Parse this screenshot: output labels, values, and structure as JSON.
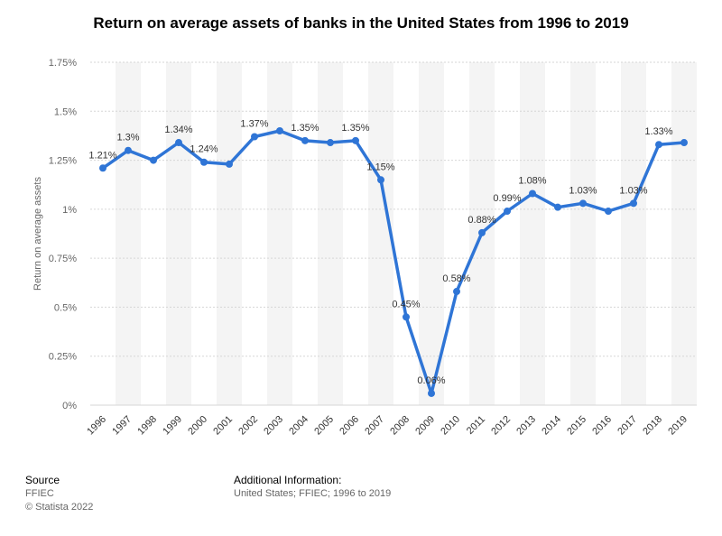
{
  "chart_data": {
    "type": "line",
    "title": "Return on average assets of banks in the United States from 1996 to 2019",
    "xlabel": "",
    "ylabel": "Return on average assets",
    "ylim": [
      0,
      1.75
    ],
    "yticks": [
      "0%",
      "0.25%",
      "0.5%",
      "0.75%",
      "1%",
      "1.25%",
      "1.5%",
      "1.75%"
    ],
    "categories": [
      "1996",
      "1997",
      "1998",
      "1999",
      "2000",
      "2001",
      "2002",
      "2003",
      "2004",
      "2005",
      "2006",
      "2007",
      "2008",
      "2009",
      "2010",
      "2011",
      "2012",
      "2013",
      "2014",
      "2015",
      "2016",
      "2017",
      "2018",
      "2019"
    ],
    "series": [
      {
        "values": [
          1.21,
          1.3,
          1.25,
          1.34,
          1.24,
          1.23,
          1.37,
          1.4,
          1.35,
          1.34,
          1.35,
          1.15,
          0.45,
          0.06,
          0.58,
          0.88,
          0.99,
          1.08,
          1.01,
          1.03,
          0.99,
          1.03,
          1.33,
          1.34
        ],
        "data_labels": [
          "1.21%",
          "1.3%",
          "",
          "1.34%",
          "1.24%",
          "",
          "1.37%",
          "",
          "1.35%",
          "",
          "1.35%",
          "1.15%",
          "0.45%",
          "0.06%",
          "0.58%",
          "0.88%",
          "0.99%",
          "1.08%",
          "",
          "1.03%",
          "",
          "1.03%",
          "1.33%",
          ""
        ]
      }
    ],
    "grid": true,
    "colors": {
      "line": "#2f75d6",
      "band": "#f4f4f4",
      "grid": "#d6d6d6"
    }
  },
  "footer": {
    "source_heading": "Source",
    "source_name": "FFIEC",
    "copyright": "© Statista 2022",
    "additional_heading": "Additional Information:",
    "additional_text": "United States; FFIEC; 1996 to 2019"
  }
}
